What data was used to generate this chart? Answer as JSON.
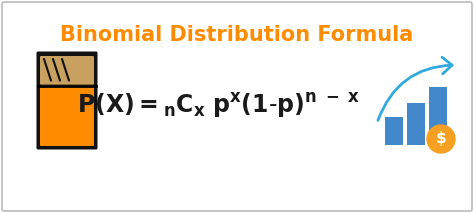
{
  "title": "Binomial Distribution Formula",
  "title_color": "#FF8C00",
  "title_fontsize": 15,
  "formula_color": "#1a1a1a",
  "formula_fontsize": 17,
  "background_color": "#ffffff",
  "border_color": "#bbbbbb",
  "fig_width": 4.74,
  "fig_height": 2.13,
  "dpi": 100,
  "calc_body_color": "#1a1a1a",
  "calc_orange": "#FF8C00",
  "calc_screen_color": "#C8A060",
  "bar_color": "#4488CC",
  "arrow_color": "#33AADD",
  "coin_color": "#F5A020",
  "coin_text_color": "#ffffff"
}
